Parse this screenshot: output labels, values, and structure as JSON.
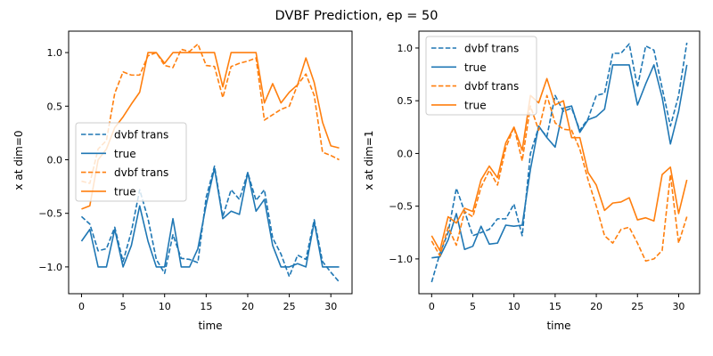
{
  "figure_title": "DVBF Prediction, ep = 50",
  "colors": {
    "blue": "#1f77b4",
    "orange": "#ff7f0e"
  },
  "chart_data": [
    {
      "type": "line",
      "xlabel": "time",
      "ylabel": "x at dim=0",
      "xlim": [
        -1.55,
        32.55
      ],
      "ylim": [
        -1.25,
        1.2
      ],
      "xticks": [
        0,
        5,
        10,
        15,
        20,
        25,
        30
      ],
      "yticks": [
        -1.0,
        -0.5,
        0.0,
        0.5,
        1.0
      ],
      "ytick_labels": [
        "−1.0",
        "−0.5",
        "0.0",
        "0.5",
        "1.0"
      ],
      "legend": "center-left",
      "x": [
        0,
        1,
        2,
        3,
        4,
        5,
        6,
        7,
        8,
        9,
        10,
        11,
        12,
        13,
        14,
        15,
        16,
        17,
        18,
        19,
        20,
        21,
        22,
        23,
        24,
        25,
        26,
        27,
        28,
        29,
        30,
        31
      ],
      "series": [
        {
          "name": "dvbf trans",
          "color": "blue",
          "style": "dashed",
          "values": [
            -0.53,
            -0.6,
            -0.85,
            -0.83,
            -0.63,
            -0.95,
            -0.67,
            -0.28,
            -0.55,
            -0.93,
            -1.06,
            -0.7,
            -0.92,
            -0.93,
            -0.96,
            -0.35,
            -0.06,
            -0.53,
            -0.28,
            -0.37,
            -0.12,
            -0.38,
            -0.28,
            -0.73,
            -0.88,
            -1.09,
            -0.89,
            -0.93,
            -0.56,
            -0.95,
            -1.05,
            -1.14
          ]
        },
        {
          "name": "true",
          "color": "blue",
          "style": "solid",
          "values": [
            -0.76,
            -0.65,
            -1.0,
            -1.0,
            -0.65,
            -1.0,
            -0.8,
            -0.43,
            -0.76,
            -1.0,
            -1.0,
            -0.55,
            -1.0,
            -1.0,
            -0.83,
            -0.42,
            -0.08,
            -0.55,
            -0.48,
            -0.51,
            -0.12,
            -0.48,
            -0.37,
            -0.8,
            -1.0,
            -1.0,
            -0.97,
            -1.0,
            -0.58,
            -1.0,
            -1.0,
            -1.0
          ]
        },
        {
          "name": "dvbf trans",
          "color": "orange",
          "style": "dashed",
          "values": [
            -0.2,
            -0.22,
            0.1,
            0.18,
            0.62,
            0.82,
            0.79,
            0.79,
            0.97,
            1.0,
            0.88,
            0.86,
            1.03,
            1.01,
            1.08,
            0.88,
            0.87,
            0.58,
            0.87,
            0.9,
            0.92,
            0.95,
            0.37,
            0.42,
            0.47,
            0.5,
            0.7,
            0.8,
            0.6,
            0.07,
            0.04,
            0.0
          ]
        },
        {
          "name": "true",
          "color": "orange",
          "style": "solid",
          "values": [
            -0.46,
            -0.43,
            0.0,
            0.1,
            0.3,
            0.4,
            0.52,
            0.63,
            1.0,
            1.0,
            0.9,
            1.0,
            1.0,
            1.0,
            1.0,
            1.0,
            1.0,
            0.68,
            1.0,
            1.0,
            1.0,
            1.0,
            0.53,
            0.71,
            0.53,
            0.63,
            0.7,
            0.95,
            0.72,
            0.35,
            0.13,
            0.11
          ]
        }
      ]
    },
    {
      "type": "line",
      "xlabel": "time",
      "ylabel": "x at dim=1",
      "xlim": [
        -1.55,
        32.55
      ],
      "ylim": [
        -1.33,
        1.16
      ],
      "xticks": [
        0,
        5,
        10,
        15,
        20,
        25,
        30
      ],
      "yticks": [
        -1.0,
        -0.5,
        0.0,
        0.5,
        1.0
      ],
      "ytick_labels": [
        "−1.0",
        "−0.5",
        "0.0",
        "0.5",
        "1.0"
      ],
      "legend": "top-left",
      "x": [
        0,
        1,
        2,
        3,
        4,
        5,
        6,
        7,
        8,
        9,
        10,
        11,
        12,
        13,
        14,
        15,
        16,
        17,
        18,
        19,
        20,
        21,
        22,
        23,
        24,
        25,
        26,
        27,
        28,
        29,
        30,
        31
      ],
      "series": [
        {
          "name": "dvbf trans",
          "color": "blue",
          "style": "dashed",
          "values": [
            -1.22,
            -0.95,
            -0.75,
            -0.33,
            -0.55,
            -0.78,
            -0.75,
            -0.72,
            -0.62,
            -0.62,
            -0.48,
            -0.78,
            0.0,
            0.25,
            0.16,
            0.55,
            0.4,
            0.43,
            0.22,
            0.33,
            0.55,
            0.57,
            0.95,
            0.95,
            1.04,
            0.63,
            1.02,
            0.98,
            0.62,
            0.26,
            0.55,
            1.05
          ]
        },
        {
          "name": "true",
          "color": "blue",
          "style": "solid",
          "values": [
            -0.99,
            -0.98,
            -0.82,
            -0.57,
            -0.91,
            -0.88,
            -0.69,
            -0.86,
            -0.85,
            -0.68,
            -0.69,
            -0.68,
            -0.15,
            0.26,
            0.15,
            0.06,
            0.43,
            0.45,
            0.2,
            0.32,
            0.35,
            0.42,
            0.84,
            0.84,
            0.84,
            0.46,
            0.66,
            0.84,
            0.53,
            0.09,
            0.4,
            0.84
          ]
        },
        {
          "name": "dvbf trans",
          "color": "orange",
          "style": "dashed",
          "values": [
            -0.83,
            -0.97,
            -0.7,
            -0.87,
            -0.55,
            -0.6,
            -0.32,
            -0.16,
            -0.3,
            0.05,
            0.25,
            -0.07,
            0.45,
            0.22,
            0.55,
            0.29,
            0.23,
            0.22,
            0.04,
            -0.25,
            -0.5,
            -0.78,
            -0.85,
            -0.72,
            -0.7,
            -0.85,
            -1.02,
            -1.0,
            -0.92,
            -0.2,
            -0.85,
            -0.6
          ]
        },
        {
          "name": "true",
          "color": "orange",
          "style": "solid",
          "values": [
            -0.78,
            -0.92,
            -0.6,
            -0.66,
            -0.52,
            -0.55,
            -0.25,
            -0.12,
            -0.23,
            0.1,
            0.25,
            0.03,
            0.55,
            0.48,
            0.71,
            0.46,
            0.5,
            0.15,
            0.15,
            -0.18,
            -0.3,
            -0.54,
            -0.47,
            -0.46,
            -0.42,
            -0.63,
            -0.61,
            -0.64,
            -0.2,
            -0.13,
            -0.57,
            -0.25
          ]
        }
      ]
    }
  ]
}
